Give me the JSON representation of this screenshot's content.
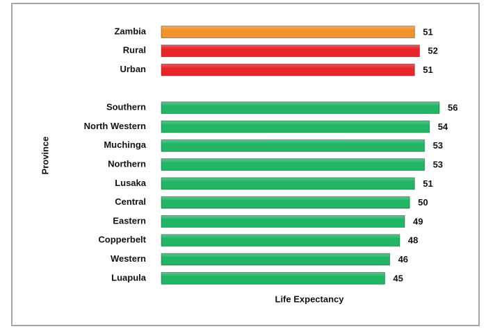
{
  "chart_data": {
    "type": "bar",
    "orientation": "horizontal",
    "categories": [
      "Zambia",
      "Rural",
      "Urban",
      null,
      "Southern",
      "North Western",
      "Muchinga",
      "Northern",
      "Lusaka",
      "Central",
      "Eastern",
      "Copperbelt",
      "Western",
      "Luapula"
    ],
    "values": [
      51,
      52,
      51,
      null,
      56,
      54,
      53,
      53,
      51,
      50,
      49,
      48,
      46,
      45
    ],
    "colors": [
      "#f0932b",
      "#e8262a",
      "#e8262a",
      null,
      "#22b566",
      "#22b566",
      "#22b566",
      "#22b566",
      "#22b566",
      "#22b566",
      "#22b566",
      "#22b566",
      "#22b566",
      "#22b566"
    ],
    "xlabel": "Life Expectancy",
    "ylabel": "Province"
  }
}
